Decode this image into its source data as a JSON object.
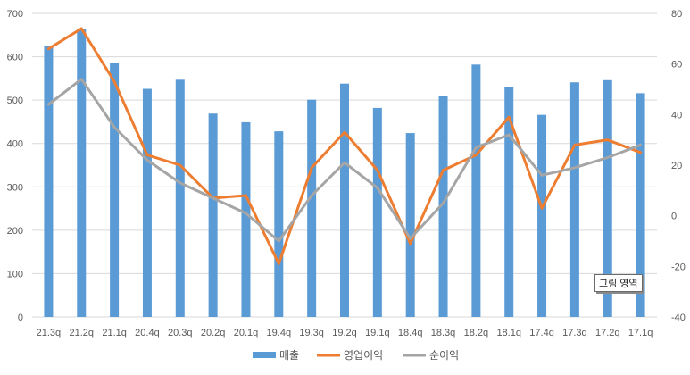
{
  "chart_data": {
    "type": "bar",
    "categories": [
      "21.3q",
      "21.2q",
      "21.1q",
      "20.4q",
      "20.3q",
      "20.2q",
      "20.1q",
      "19.4q",
      "19.3q",
      "19.2q",
      "19.1q",
      "18.4q",
      "18.3q",
      "18.2q",
      "18.1q",
      "17.4q",
      "17.3q",
      "17.2q",
      "17.1q"
    ],
    "series": [
      {
        "name": "매출",
        "type": "bar",
        "axis": "left",
        "color": "#5b9bd5",
        "values": [
          625,
          665,
          586,
          526,
          547,
          469,
          449,
          428,
          501,
          538,
          482,
          424,
          509,
          582,
          531,
          466,
          541,
          546,
          516
        ]
      },
      {
        "name": "영업이익",
        "type": "line",
        "axis": "right",
        "color": "#ed7d31",
        "values": [
          66,
          74,
          53,
          24,
          20,
          7,
          8,
          -19,
          19,
          33,
          18,
          -11,
          18,
          24,
          39,
          3,
          28,
          30,
          25
        ]
      },
      {
        "name": "순이익",
        "type": "line",
        "axis": "right",
        "color": "#a5a5a5",
        "values": [
          44,
          54,
          35,
          22,
          13,
          7,
          1,
          -10,
          8,
          21,
          11,
          -9,
          5,
          27,
          32,
          16,
          19,
          23,
          28
        ]
      }
    ],
    "y_left": {
      "min": 0,
      "max": 700,
      "ticks": [
        0,
        100,
        200,
        300,
        400,
        500,
        600,
        700
      ]
    },
    "y_right": {
      "min": -40,
      "max": 80,
      "ticks": [
        -40,
        -20,
        0,
        20,
        40,
        60,
        80
      ]
    },
    "grid": true,
    "legend_position": "bottom",
    "title": "",
    "xlabel": "",
    "ylabel": ""
  },
  "tooltip": {
    "text": "그림 영역"
  }
}
